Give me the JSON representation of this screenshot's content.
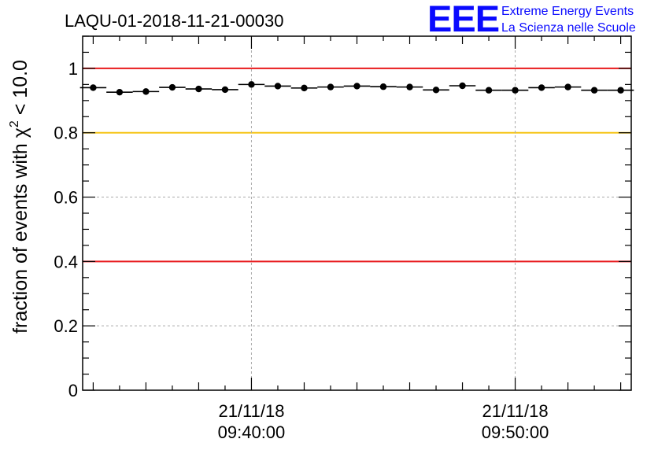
{
  "chart_data": {
    "type": "scatter",
    "title": "LAQU-01-2018-11-21-00030",
    "ylabel_main": "fraction of events with χ",
    "ylabel_sup": "2",
    "ylabel_tail": " < 10.0",
    "xlabel": "",
    "ylim": [
      0,
      1.1
    ],
    "x_range_minutes": [
      -6.4,
      14.4
    ],
    "y_ticks": [
      {
        "value": 0,
        "label": "0"
      },
      {
        "value": 0.2,
        "label": "0.2"
      },
      {
        "value": 0.4,
        "label": "0.4"
      },
      {
        "value": 0.6,
        "label": "0.6"
      },
      {
        "value": 0.8,
        "label": "0.8"
      },
      {
        "value": 1,
        "label": "1"
      }
    ],
    "x_ticks": [
      {
        "minutes": 0,
        "date": "21/11/18",
        "time": "09:40:00"
      },
      {
        "minutes": 10,
        "date": "21/11/18",
        "time": "09:50:00"
      }
    ],
    "reference_lines": [
      {
        "value": 1.0,
        "color": "#e8191c"
      },
      {
        "value": 0.8,
        "color": "#f5c518"
      },
      {
        "value": 0.4,
        "color": "#e8191c"
      }
    ],
    "bin_width_minutes": 1,
    "points": [
      {
        "x": -6.0,
        "y": 0.94
      },
      {
        "x": -5.0,
        "y": 0.926
      },
      {
        "x": -4.0,
        "y": 0.928
      },
      {
        "x": -3.0,
        "y": 0.941
      },
      {
        "x": -2.0,
        "y": 0.936
      },
      {
        "x": -1.0,
        "y": 0.934
      },
      {
        "x": 0.0,
        "y": 0.95
      },
      {
        "x": 1.0,
        "y": 0.945
      },
      {
        "x": 2.0,
        "y": 0.939
      },
      {
        "x": 3.0,
        "y": 0.942
      },
      {
        "x": 4.0,
        "y": 0.945
      },
      {
        "x": 5.0,
        "y": 0.943
      },
      {
        "x": 6.0,
        "y": 0.942
      },
      {
        "x": 7.0,
        "y": 0.933
      },
      {
        "x": 8.0,
        "y": 0.946
      },
      {
        "x": 9.0,
        "y": 0.932
      },
      {
        "x": 10.0,
        "y": 0.932
      },
      {
        "x": 11.0,
        "y": 0.94
      },
      {
        "x": 12.0,
        "y": 0.942
      },
      {
        "x": 13.0,
        "y": 0.932
      },
      {
        "x": 14.0,
        "y": 0.932
      }
    ]
  },
  "logo": {
    "mark": "EEE",
    "line1": "Extreme Energy Events",
    "line2": "La Scienza nelle Scuole",
    "color": "#0a0aff"
  }
}
